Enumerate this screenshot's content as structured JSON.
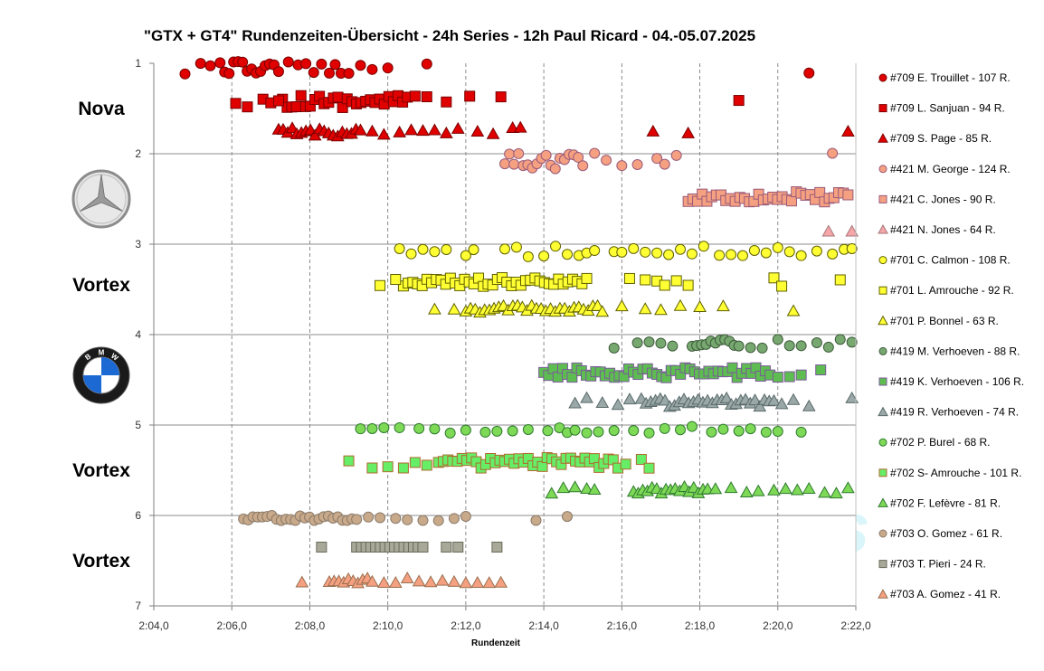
{
  "chart_data": {
    "type": "scatter",
    "title": "\"GTX + GT4\" Rundenzeiten-Übersicht - 24h Series - 12h Paul Ricard - 04.-05.07.2025",
    "xlabel": "Rundenzeit",
    "ylabel": "",
    "xlim": [
      124,
      142
    ],
    "ylim": [
      1,
      7
    ],
    "y_inverted": true,
    "grid": "on",
    "legend_position": "right",
    "x_ticks": [
      "2:04,0",
      "2:06,0",
      "2:08,0",
      "2:10,0",
      "2:12,0",
      "2:14,0",
      "2:16,0",
      "2:18,0",
      "2:20,0",
      "2:22,0"
    ],
    "y_ticks": [
      "1",
      "2",
      "3",
      "4",
      "5",
      "6",
      "7"
    ],
    "watermark": "GTeins",
    "team_labels": [
      {
        "text": "Nova",
        "y": 1.5
      },
      {
        "logo": "mercedes-logo",
        "y": 2.5
      },
      {
        "text": "Vortex",
        "y": 3.45
      },
      {
        "logo": "bmw-logo",
        "y": 4.45
      },
      {
        "text": "Vortex",
        "y": 5.5
      },
      {
        "text": "Vortex",
        "y": 6.5
      }
    ],
    "series": [
      {
        "name": "#709 E. Trouillet - 107 R.",
        "marker": "circle",
        "color": "#e00000",
        "stroke": "#7a0000",
        "y": 1.05,
        "jitter": 0.07,
        "x_dense": [
          125.7,
          127.2
        ],
        "x": [
          124.8,
          125.2,
          125.45,
          127.45,
          127.7,
          127.9,
          128.1,
          128.3,
          128.5,
          128.65,
          128.8,
          129.0,
          129.3,
          129.6,
          130.0,
          131.0,
          140.8
        ]
      },
      {
        "name": "#709 L. Sanjuan - 94 R.",
        "marker": "square",
        "color": "#e00000",
        "stroke": "#7a0000",
        "y": 1.42,
        "jitter": 0.07,
        "x_dense": [
          127.3,
          130.5
        ],
        "x": [
          126.1,
          126.4,
          126.8,
          127.0,
          127.2,
          130.7,
          131.0,
          131.5,
          132.1,
          132.9,
          139.0
        ]
      },
      {
        "name": "#709 S. Page - 85 R.",
        "marker": "triangle",
        "color": "#e00000",
        "stroke": "#7a0000",
        "y": 1.76,
        "jitter": 0.05,
        "x_dense": [
          127.2,
          129.3
        ],
        "x": [
          129.6,
          129.9,
          130.3,
          130.6,
          130.9,
          131.2,
          131.5,
          131.8,
          132.3,
          132.7,
          133.2,
          133.4,
          136.8,
          137.7,
          141.8
        ]
      },
      {
        "name": "#421 M. George - 124 R.",
        "marker": "circle",
        "color": "#f4a081",
        "stroke": "#9a5a7a",
        "y": 2.08,
        "jitter": 0.09,
        "x_dense": [
          133.0,
          135.0
        ],
        "x": [
          135.3,
          135.6,
          136.0,
          136.4,
          136.9,
          137.1,
          137.4,
          141.4
        ]
      },
      {
        "name": "#421 C. Jones - 90 R.",
        "marker": "square",
        "color": "#f4a081",
        "stroke": "#9a5a7a",
        "y": 2.48,
        "jitter": 0.06,
        "x_dense": [
          137.7,
          141.8
        ],
        "x": []
      },
      {
        "name": "#421 N. Jones - 64 R.",
        "marker": "triangle",
        "color": "#f4a6a8",
        "stroke": "#a8767a",
        "y": 2.86,
        "jitter": 0.0,
        "x_dense": [],
        "x": [
          141.3,
          141.9
        ]
      },
      {
        "name": "#701 C. Calmon - 108 R.",
        "marker": "circle",
        "color": "#ffff33",
        "stroke": "#606000",
        "y": 3.08,
        "jitter": 0.06,
        "x_dense": [],
        "x": [
          130.3,
          130.6,
          130.9,
          131.2,
          131.5,
          132.0,
          132.2,
          133.0,
          133.3,
          133.6,
          134.0,
          134.3,
          134.6,
          134.9,
          135.1,
          135.3,
          135.8,
          136.0,
          136.3,
          136.6,
          136.9,
          137.2,
          137.5,
          137.8,
          138.1,
          138.5,
          138.8,
          139.1,
          139.4,
          139.7,
          140.0,
          140.3,
          140.6,
          141.0,
          141.4,
          141.7,
          141.9
        ]
      },
      {
        "name": "#701 L. Amrouche - 92 R.",
        "marker": "square",
        "color": "#ffff33",
        "stroke": "#606000",
        "y": 3.42,
        "jitter": 0.05,
        "x_dense": [
          130.4,
          135.1
        ],
        "x": [
          129.8,
          130.2,
          136.2,
          136.6,
          136.9,
          137.1,
          137.4,
          137.7,
          139.9,
          140.1,
          141.6
        ]
      },
      {
        "name": "#701 P. Bonnel - 63 R.",
        "marker": "triangle",
        "color": "#ffff33",
        "stroke": "#606000",
        "y": 3.72,
        "jitter": 0.04,
        "x_dense": [
          132.0,
          135.5
        ],
        "x": [
          131.2,
          131.7,
          136.0,
          136.6,
          137.0,
          137.5,
          138.0,
          138.6,
          140.4
        ]
      },
      {
        "name": "#419 M. Verhoeven - 88 R.",
        "marker": "circle",
        "color": "#77a870",
        "stroke": "#3d5a3a",
        "y": 4.1,
        "jitter": 0.05,
        "x_dense": [
          137.8,
          139.0
        ],
        "x": [
          135.8,
          136.4,
          136.7,
          137.0,
          137.3,
          139.3,
          139.6,
          140.0,
          140.3,
          140.6,
          141.0,
          141.3,
          141.6,
          141.9
        ]
      },
      {
        "name": "#419 K. Verhoeven - 106 R.",
        "marker": "square",
        "color": "#5ebd50",
        "stroke": "#7a5a9a",
        "y": 4.42,
        "jitter": 0.06,
        "x_dense": [
          134.0,
          139.8
        ],
        "x": [
          140.0,
          140.3,
          140.6,
          141.1
        ]
      },
      {
        "name": "#419 R. Verhoeven - 74 R.",
        "marker": "triangle",
        "color": "#9aa8a8",
        "stroke": "#5a6a6a",
        "y": 4.75,
        "jitter": 0.05,
        "x_dense": [
          136.5,
          139.9
        ],
        "x": [
          134.8,
          135.1,
          135.5,
          135.9,
          136.2,
          140.1,
          140.4,
          140.8,
          141.9
        ]
      },
      {
        "name": "#702 P. Burel - 68 R.",
        "marker": "circle",
        "color": "#7ed957",
        "stroke": "#2e7a2e",
        "y": 5.05,
        "jitter": 0.04,
        "x_dense": [],
        "x": [
          129.3,
          129.6,
          129.9,
          130.3,
          130.8,
          131.2,
          131.6,
          132.0,
          132.5,
          132.8,
          133.2,
          133.6,
          134.1,
          134.4,
          134.6,
          134.8,
          135.1,
          135.4,
          135.8,
          136.3,
          136.7,
          137.1,
          137.5,
          137.8,
          138.3,
          138.6,
          139.0,
          139.3,
          139.7,
          140.0,
          140.6
        ]
      },
      {
        "name": "#702 S- Amrouche - 101 R.",
        "marker": "square",
        "color": "#66ee66",
        "stroke": "#b06a30",
        "y": 5.42,
        "jitter": 0.06,
        "x_dense": [
          131.3,
          135.9
        ],
        "x": [
          129.0,
          129.6,
          130.0,
          130.4,
          130.7,
          131.0,
          136.1,
          136.5,
          136.7
        ]
      },
      {
        "name": "#702 F. Lefèvre - 81 R.",
        "marker": "triangle",
        "color": "#7ed957",
        "stroke": "#2e7a2e",
        "y": 5.72,
        "jitter": 0.04,
        "x_dense": [
          136.3,
          138.2
        ],
        "x": [
          134.2,
          134.5,
          134.8,
          135.1,
          135.3,
          138.4,
          138.8,
          139.2,
          139.5,
          139.9,
          140.2,
          140.5,
          140.8,
          141.2,
          141.5,
          141.8
        ]
      },
      {
        "name": "#703 O. Gomez - 61 R.",
        "marker": "circle",
        "color": "#c8a98a",
        "stroke": "#8a7a6a",
        "y": 6.03,
        "jitter": 0.03,
        "x_dense": [
          126.3,
          129.2
        ],
        "x": [
          129.5,
          129.8,
          130.2,
          130.5,
          130.9,
          131.3,
          131.7,
          132.0,
          133.8,
          134.6
        ]
      },
      {
        "name": "#703 T. Pieri - 24 R.",
        "marker": "square",
        "color": "#a9a99a",
        "stroke": "#6a6a5a",
        "y": 6.35,
        "jitter": 0.0,
        "x_dense": [
          129.2,
          130.9
        ],
        "x": [
          128.3,
          131.5,
          131.8,
          132.8
        ]
      },
      {
        "name": "#703 A. Gomez - 41 R.",
        "marker": "triangle",
        "color": "#f4a081",
        "stroke": "#9a7050",
        "y": 6.72,
        "jitter": 0.03,
        "x_dense": [
          128.5,
          129.6
        ],
        "x": [
          127.8,
          129.9,
          130.2,
          130.5,
          130.8,
          131.1,
          131.4,
          131.7,
          132.0,
          132.3,
          132.6,
          132.9
        ]
      }
    ]
  }
}
